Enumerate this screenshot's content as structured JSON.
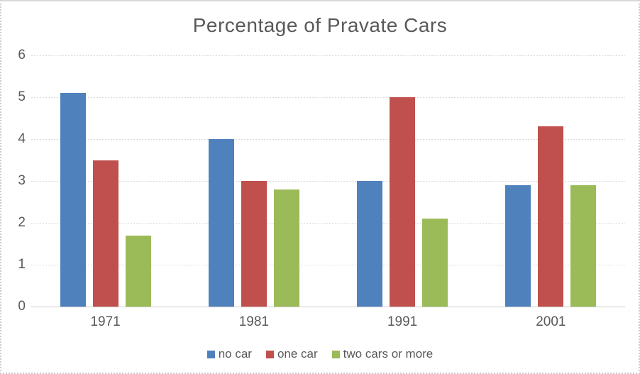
{
  "chart_data": {
    "type": "bar",
    "title": "Percentage of Pravate Cars",
    "categories": [
      "1971",
      "1981",
      "1991",
      "2001"
    ],
    "series": [
      {
        "name": "no car",
        "color": "#4F81BD",
        "values": [
          5.1,
          4.0,
          3.0,
          2.9
        ]
      },
      {
        "name": "one car",
        "color": "#C0504D",
        "values": [
          3.5,
          3.0,
          5.0,
          4.3
        ]
      },
      {
        "name": "two cars or more",
        "color": "#9BBB59",
        "values": [
          1.7,
          2.8,
          2.1,
          2.9
        ]
      }
    ],
    "xlabel": "",
    "ylabel": "",
    "ylim": [
      0,
      6
    ],
    "ytick_step": 1,
    "yticks": [
      "0",
      "1",
      "2",
      "3",
      "4",
      "5",
      "6"
    ],
    "grid": true,
    "legend_position": "bottom",
    "text_color": "#595959",
    "gridline_color": "#D9D9D9"
  }
}
